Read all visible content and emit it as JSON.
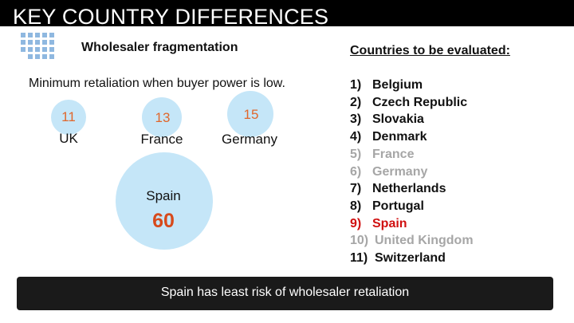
{
  "header": {
    "title": "KEY COUNTRY DIFFERENCES"
  },
  "icons": {
    "grid": "grid-dots-icon"
  },
  "panel": {
    "subtitle": "Wholesaler fragmentation",
    "note": "Minimum retaliation when buyer power is low.",
    "bubbles": [
      {
        "country": "UK",
        "value": "11"
      },
      {
        "country": "France",
        "value": "13"
      },
      {
        "country": "Germany",
        "value": "15"
      },
      {
        "country": "Spain",
        "value": "60"
      }
    ]
  },
  "list": {
    "heading": "Countries to be evaluated:",
    "items": [
      {
        "num": "1)",
        "name": "Belgium",
        "style": "black"
      },
      {
        "num": "2)",
        "name": "Czech Republic",
        "style": "black"
      },
      {
        "num": "3)",
        "name": "Slovakia",
        "style": "black"
      },
      {
        "num": "4)",
        "name": "Denmark",
        "style": "black"
      },
      {
        "num": "5)",
        "name": "France",
        "style": "gray"
      },
      {
        "num": "6)",
        "name": "Germany",
        "style": "gray"
      },
      {
        "num": "7)",
        "name": "Netherlands",
        "style": "black"
      },
      {
        "num": "8)",
        "name": "Portugal",
        "style": "black"
      },
      {
        "num": "9)",
        "name": "Spain",
        "style": "red"
      },
      {
        "num": "10)",
        "name": "United Kingdom",
        "style": "gray"
      },
      {
        "num": "11)",
        "name": "Switzerland",
        "style": "black"
      }
    ]
  },
  "footer": {
    "text": "Spain has least risk of wholesaler retaliation"
  },
  "colors": {
    "bubble": "#c5e6f8",
    "number_orange": "#e0672c",
    "number_red": "#d74a1c",
    "highlight_red": "#d01010",
    "muted_gray": "#a6a6a6"
  }
}
